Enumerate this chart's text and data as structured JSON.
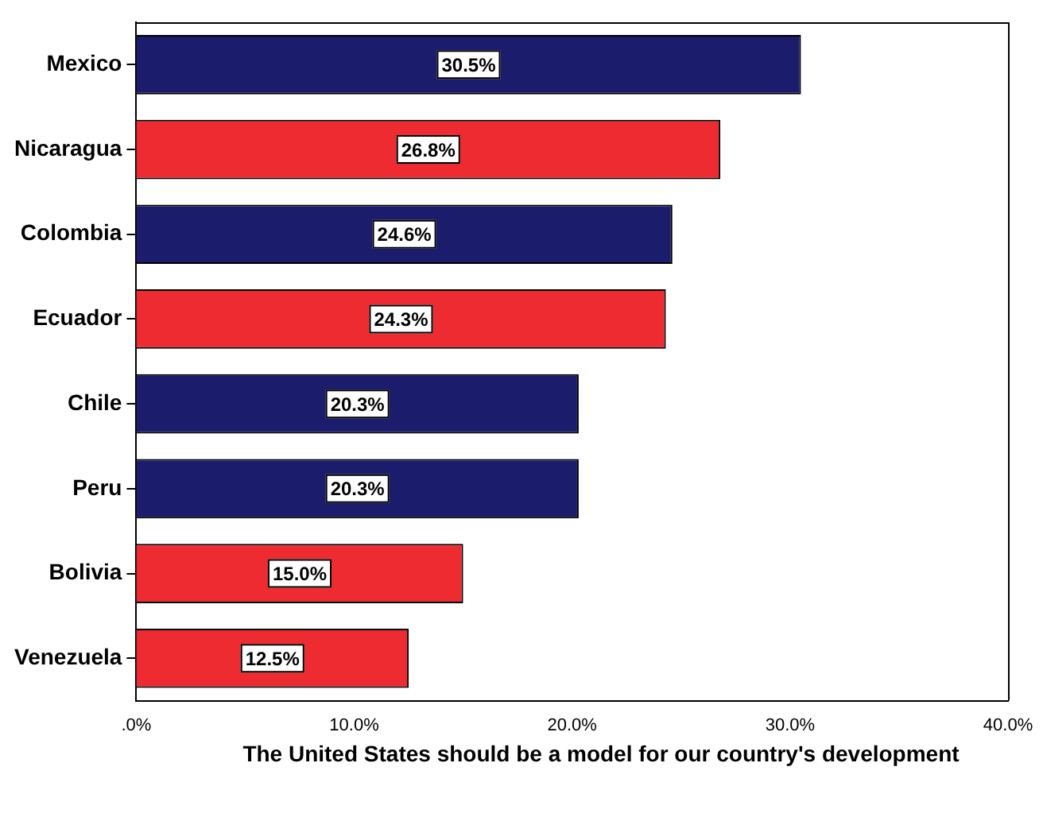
{
  "chart_data": {
    "type": "bar",
    "orientation": "horizontal",
    "xlabel": "The United States should be a model for our country's development",
    "categories": [
      "Mexico",
      "Nicaragua",
      "Colombia",
      "Ecuador",
      "Chile",
      "Peru",
      "Bolivia",
      "Venezuela"
    ],
    "values": [
      30.5,
      26.8,
      24.6,
      24.3,
      20.3,
      20.3,
      15.0,
      12.5
    ],
    "colors": [
      "#1c1c6c",
      "#ee2b31",
      "#1c1c6c",
      "#ee2b31",
      "#1c1c6c",
      "#1c1c6c",
      "#ee2b31",
      "#ee2b31"
    ],
    "value_labels": [
      "30.5%",
      "26.8%",
      "24.6%",
      "24.3%",
      "20.3%",
      "20.3%",
      "15.0%",
      "12.5%"
    ],
    "xlim": [
      0,
      40
    ],
    "xticks": [
      {
        "value": 0,
        "label": ".0%"
      },
      {
        "value": 10,
        "label": "10.0%"
      },
      {
        "value": 20,
        "label": "20.0%"
      },
      {
        "value": 30,
        "label": "30.0%"
      },
      {
        "value": 40,
        "label": "40.0%"
      }
    ],
    "grid": false,
    "legend": false
  }
}
